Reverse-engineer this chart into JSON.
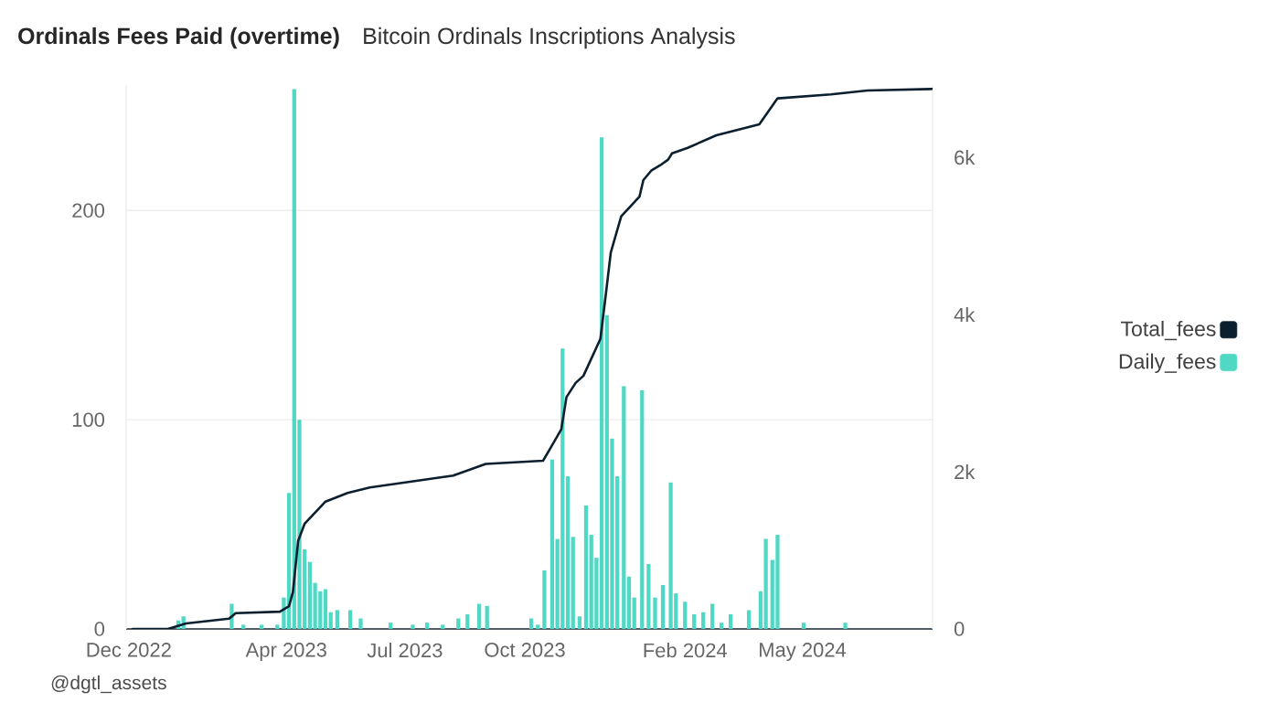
{
  "chart_data": {
    "type": "bar",
    "title": "Ordinals Fees Paid (overtime)",
    "subtitle": "Bitcoin Ordinals Inscriptions Analysis",
    "annotations": [
      "@dgtl_assets"
    ],
    "xlim": [
      "2022-11-29",
      "2024-08-09"
    ],
    "xticks": [
      {
        "value": "2022-12-01",
        "label": "Dec 2022"
      },
      {
        "value": "2023-04-01",
        "label": "Apr 2023"
      },
      {
        "value": "2023-07-01",
        "label": "Jul 2023"
      },
      {
        "value": "2023-10-01",
        "label": "Oct 2023"
      },
      {
        "value": "2024-02-01",
        "label": "Feb 2024"
      },
      {
        "value": "2024-05-01",
        "label": "May 2024"
      }
    ],
    "ylim": [
      0,
      260
    ],
    "yticks": [
      0,
      100,
      200
    ],
    "y2lim": [
      0,
      6920
    ],
    "y2ticks": [
      {
        "value": 0,
        "label": "0"
      },
      {
        "value": 2000,
        "label": "2k"
      },
      {
        "value": 4000,
        "label": "4k"
      },
      {
        "value": 6000,
        "label": "6k"
      }
    ],
    "grid": "y",
    "legend": "right",
    "series": [
      {
        "name": "Total_fees",
        "type": "line",
        "axis": "y2",
        "color": "#0b1f2e",
        "x": [
          "2022-12-04",
          "2022-12-31",
          "2023-01-14",
          "2023-02-16",
          "2023-02-21",
          "2023-03-27",
          "2023-04-03",
          "2023-04-06",
          "2023-04-10",
          "2023-04-15",
          "2023-05-01",
          "2023-05-18",
          "2023-06-04",
          "2023-06-25",
          "2023-08-07",
          "2023-09-01",
          "2023-10-15",
          "2023-10-20",
          "2023-10-29",
          "2023-11-02",
          "2023-11-09",
          "2023-11-15",
          "2023-11-28",
          "2023-12-02",
          "2023-12-06",
          "2023-12-14",
          "2023-12-28",
          "2023-12-31",
          "2024-01-06",
          "2024-01-13",
          "2024-01-19",
          "2024-01-22",
          "2024-02-03",
          "2024-02-25",
          "2024-03-29",
          "2024-04-12",
          "2024-05-23",
          "2024-06-20",
          "2024-08-09"
        ],
        "values": [
          0,
          0,
          70,
          130,
          200,
          220,
          290,
          470,
          1120,
          1340,
          1620,
          1730,
          1800,
          1850,
          1950,
          2100,
          2140,
          2280,
          2540,
          2950,
          3130,
          3220,
          3690,
          4230,
          4790,
          5250,
          5500,
          5710,
          5830,
          5900,
          5970,
          6050,
          6120,
          6280,
          6420,
          6750,
          6800,
          6850,
          6870
        ]
      },
      {
        "name": "Daily_fees",
        "color": "#4fd8c4",
        "x": [
          "2023-01-08",
          "2023-01-12",
          "2023-02-18",
          "2023-02-27",
          "2023-03-13",
          "2023-03-25",
          "2023-03-30",
          "2023-04-03",
          "2023-04-07",
          "2023-04-11",
          "2023-04-15",
          "2023-04-19",
          "2023-04-23",
          "2023-04-27",
          "2023-05-01",
          "2023-05-05",
          "2023-05-10",
          "2023-05-20",
          "2023-05-28",
          "2023-06-20",
          "2023-07-07",
          "2023-07-18",
          "2023-07-30",
          "2023-08-11",
          "2023-08-18",
          "2023-08-27",
          "2023-09-02",
          "2023-10-06",
          "2023-10-11",
          "2023-10-16",
          "2023-10-22",
          "2023-10-26",
          "2023-10-30",
          "2023-11-03",
          "2023-11-07",
          "2023-11-12",
          "2023-11-17",
          "2023-11-21",
          "2023-11-25",
          "2023-11-29",
          "2023-12-03",
          "2023-12-07",
          "2023-12-11",
          "2023-12-16",
          "2023-12-20",
          "2023-12-24",
          "2023-12-30",
          "2024-01-04",
          "2024-01-09",
          "2024-01-15",
          "2024-01-21",
          "2024-01-25",
          "2024-02-01",
          "2024-02-08",
          "2024-02-15",
          "2024-02-22",
          "2024-02-29",
          "2024-03-07",
          "2024-03-21",
          "2024-03-30",
          "2024-04-03",
          "2024-04-08",
          "2024-04-12",
          "2024-05-02",
          "2024-06-03"
        ],
        "values": [
          4,
          6,
          12,
          2,
          2,
          2,
          15,
          65,
          258,
          100,
          38,
          32,
          22,
          18,
          19,
          8,
          9,
          9,
          5,
          3,
          2,
          3,
          2,
          5,
          7,
          12,
          11,
          5,
          2,
          28,
          81,
          43,
          134,
          73,
          44,
          6,
          59,
          45,
          34,
          235,
          150,
          91,
          73,
          116,
          25,
          15,
          114,
          31,
          15,
          21,
          70,
          17,
          13,
          7,
          8,
          12,
          3,
          7,
          9,
          18,
          43,
          33,
          45,
          3,
          3
        ]
      }
    ]
  }
}
